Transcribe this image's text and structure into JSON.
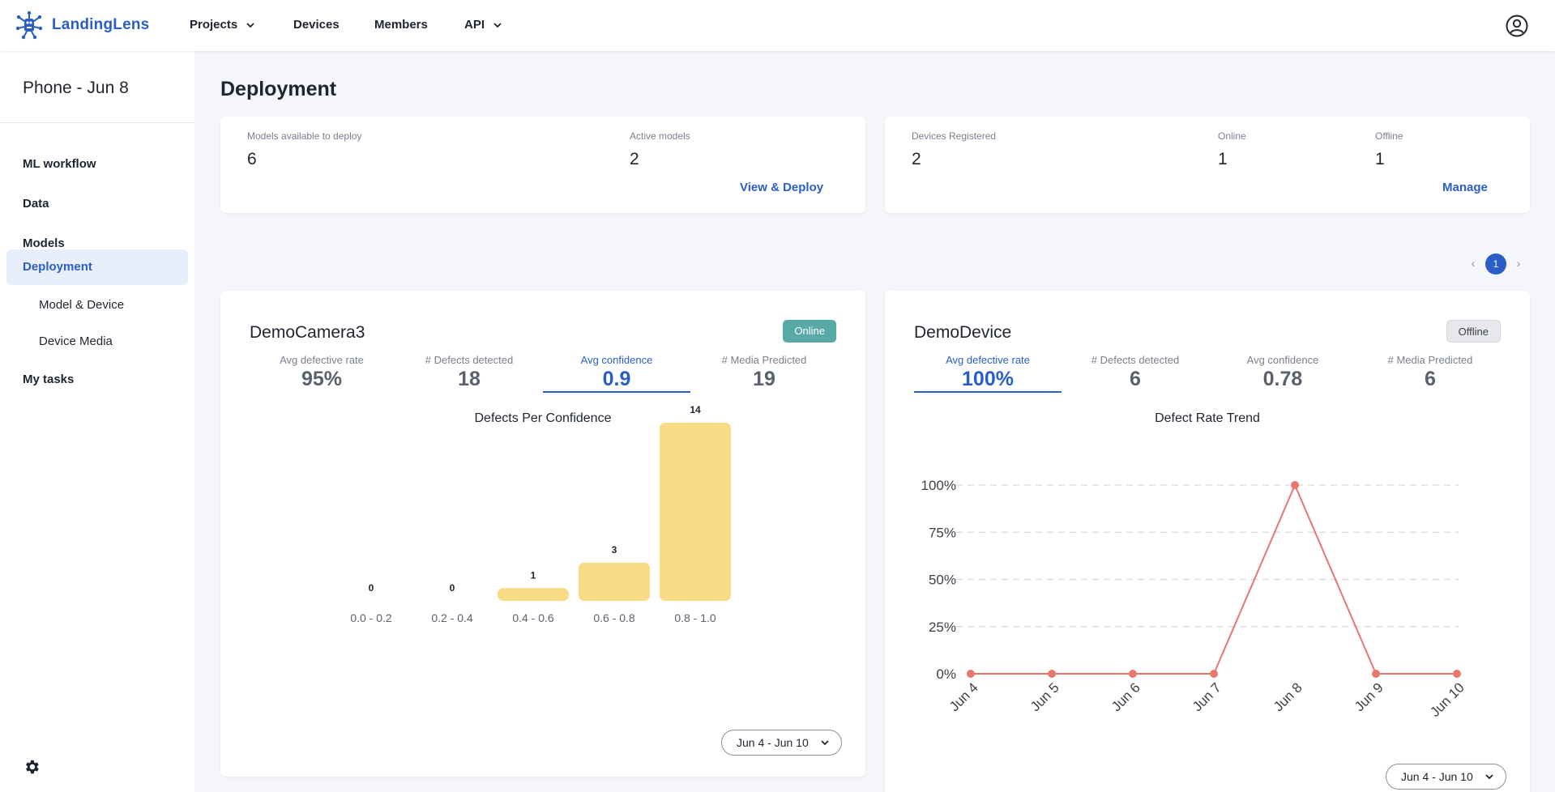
{
  "header": {
    "logo_text": "LandingLens",
    "nav": [
      {
        "label": "Projects",
        "has_dropdown": true
      },
      {
        "label": "Devices",
        "has_dropdown": false
      },
      {
        "label": "Members",
        "has_dropdown": false
      },
      {
        "label": "API",
        "has_dropdown": true
      }
    ],
    "icons": {
      "logo": "landinglens-logo-icon",
      "avatar": "user-circle-icon"
    }
  },
  "sidebar": {
    "project_title": "Phone - Jun 8",
    "items": [
      {
        "label": "ML workflow"
      },
      {
        "label": "Data"
      },
      {
        "label": "Models"
      },
      {
        "label": "Deployment",
        "active": true
      },
      {
        "label": "Model & Device",
        "sub": true
      },
      {
        "label": "Device Media",
        "sub": true
      },
      {
        "label": "My tasks"
      }
    ],
    "settings_icon": "gear-icon"
  },
  "page": {
    "title": "Deployment",
    "models_summary": {
      "available_label": "Models available to deploy",
      "available_value": "6",
      "active_label": "Active models",
      "active_value": "2",
      "action": "View & Deploy"
    },
    "devices_summary": {
      "registered_label": "Devices Registered",
      "registered_value": "2",
      "online_label": "Online",
      "online_value": "1",
      "offline_label": "Offline",
      "offline_value": "1",
      "action": "Manage"
    },
    "pagination": {
      "current": "1",
      "prev": "‹",
      "next": "›"
    }
  },
  "devices": [
    {
      "name": "DemoCamera3",
      "status": "Online",
      "metrics": [
        {
          "label": "Avg defective rate",
          "value": "95%"
        },
        {
          "label": "# Defects detected",
          "value": "18"
        },
        {
          "label": "Avg confidence",
          "value": "0.9",
          "selected": true
        },
        {
          "label": "# Media Predicted",
          "value": "19"
        }
      ],
      "date_range": "Jun 4 - Jun 10"
    },
    {
      "name": "DemoDevice",
      "status": "Offline",
      "metrics": [
        {
          "label": "Avg defective rate",
          "value": "100%",
          "selected": true
        },
        {
          "label": "# Defects detected",
          "value": "6"
        },
        {
          "label": "Avg confidence",
          "value": "0.78"
        },
        {
          "label": "# Media Predicted",
          "value": "6"
        }
      ],
      "date_range": "Jun 4 - Jun 10"
    }
  ],
  "chart_data": [
    {
      "type": "bar",
      "title": "Defects Per Confidence",
      "categories": [
        "0.0 - 0.2",
        "0.2 - 0.4",
        "0.4 - 0.6",
        "0.6 - 0.8",
        "0.8 - 1.0"
      ],
      "values": [
        0,
        0,
        1,
        3,
        14
      ],
      "data_labels": true,
      "color": "#f8dc85",
      "grid": false
    },
    {
      "type": "line",
      "title": "Defect Rate Trend",
      "categories": [
        "Jun 4",
        "Jun 5",
        "Jun 6",
        "Jun 7",
        "Jun 8",
        "Jun 9",
        "Jun 10"
      ],
      "values": [
        0,
        0,
        0,
        0,
        100,
        0,
        0
      ],
      "y_ticks": [
        "0%",
        "25%",
        "50%",
        "75%",
        "100%"
      ],
      "ylim": [
        0,
        100
      ],
      "grid": true,
      "color": "#e8766c"
    }
  ]
}
